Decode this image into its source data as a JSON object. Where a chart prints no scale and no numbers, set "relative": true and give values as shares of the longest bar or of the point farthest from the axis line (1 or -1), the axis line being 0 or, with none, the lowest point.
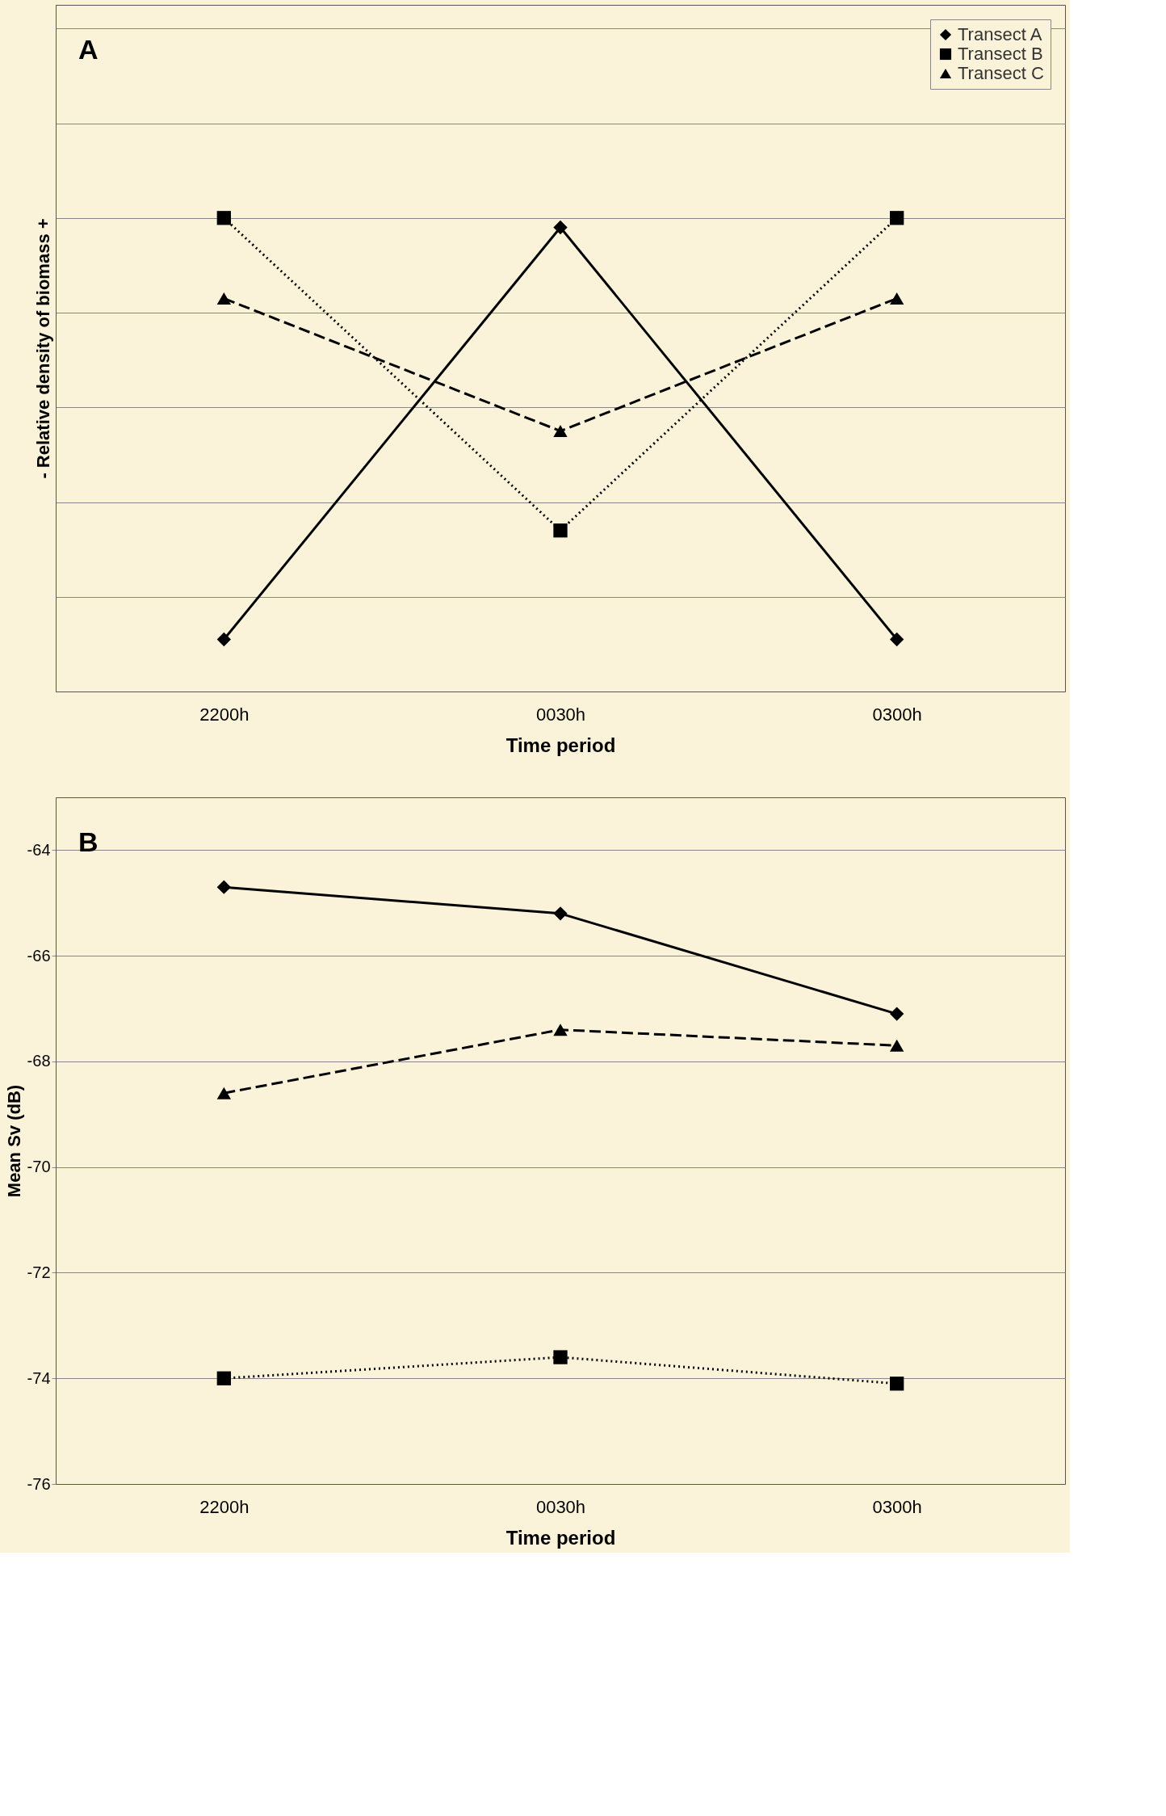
{
  "chart_data": [
    {
      "type": "line",
      "relative": true,
      "xlabel": "Time period",
      "ylabel": "- Relative density of biomass +",
      "categories": [
        "2200h",
        "0030h",
        "0300h"
      ],
      "grid": "y",
      "legend": "top right",
      "tick_labels": "x",
      "annotations": [
        "A"
      ],
      "series": [
        {
          "name": "Transect A",
          "color": "#000000",
          "marker": "diamond",
          "line_style": "solid",
          "values": [
            0.11,
            0.98,
            0.11
          ]
        },
        {
          "name": "Transect B",
          "color": "#000000",
          "marker": "square",
          "line_style": "dotted",
          "values": [
            1.0,
            0.34,
            1.0
          ]
        },
        {
          "name": "Transect C",
          "color": "#000000",
          "marker": "triangle",
          "line_style": "dashed",
          "values": [
            0.83,
            0.55,
            0.83
          ]
        }
      ]
    },
    {
      "type": "line",
      "xlabel": "Time period",
      "ylabel": "Mean Sv (dB)",
      "categories": [
        "2200h",
        "0030h",
        "0300h"
      ],
      "ylim": [
        -76,
        -63
      ],
      "yticks": [
        -76,
        -74,
        -72,
        -70,
        -68,
        -66,
        -64
      ],
      "grid": "y",
      "legend": false,
      "annotations": [
        "B"
      ],
      "series": [
        {
          "color": "#000000",
          "marker": "diamond",
          "line_style": "solid",
          "values": [
            -64.7,
            -65.2,
            -67.1
          ]
        },
        {
          "color": "#000000",
          "marker": "square",
          "line_style": "dotted",
          "values": [
            -74.0,
            -73.6,
            -74.1
          ]
        },
        {
          "color": "#000000",
          "marker": "triangle",
          "line_style": "dashed",
          "values": [
            -68.6,
            -67.4,
            -67.7
          ]
        }
      ]
    }
  ]
}
